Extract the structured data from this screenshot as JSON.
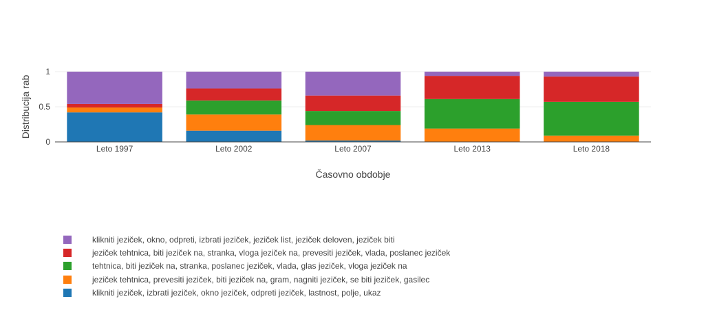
{
  "chart_data": {
    "type": "bar",
    "stacked": true,
    "normalized": true,
    "categories": [
      "Leto 1997",
      "Leto 2002",
      "Leto 2007",
      "Leto 2013",
      "Leto 2018"
    ],
    "xlabel": "Časovno obdobje",
    "ylabel": "Distribucija rab",
    "ylim": [
      0,
      1
    ],
    "yticks": [
      "0",
      "0.5",
      "1"
    ],
    "grid": true,
    "legend_position": "bottom-left",
    "series": [
      {
        "name": "klikniti jeziček, izbrati jeziček, okno jeziček, odpreti jeziček, lastnost, polje, ukaz",
        "color": "#1f77b4",
        "values": [
          0.42,
          0.16,
          0.02,
          0.0,
          0.0
        ]
      },
      {
        "name": "jeziček tehtnica, prevesiti jeziček, biti jeziček na, gram, nagniti jeziček, se biti jeziček, gasilec",
        "color": "#ff7f0e",
        "values": [
          0.07,
          0.23,
          0.22,
          0.19,
          0.09
        ]
      },
      {
        "name": "tehtnica, biti jeziček na, stranka, poslanec jeziček, vlada, glas jeziček, vloga jeziček na",
        "color": "#2ca02c",
        "values": [
          0.0,
          0.2,
          0.2,
          0.42,
          0.48
        ]
      },
      {
        "name": "jeziček tehtnica, biti jeziček na, stranka, vloga jeziček na, prevesiti jeziček, vlada, poslanec jeziček",
        "color": "#d62728",
        "values": [
          0.05,
          0.17,
          0.22,
          0.33,
          0.36
        ]
      },
      {
        "name": "klikniti jeziček, okno, odpreti, izbrati jeziček, jeziček list, jeziček deloven, jeziček biti",
        "color": "#9467bd",
        "values": [
          0.46,
          0.24,
          0.34,
          0.06,
          0.07
        ]
      }
    ]
  }
}
